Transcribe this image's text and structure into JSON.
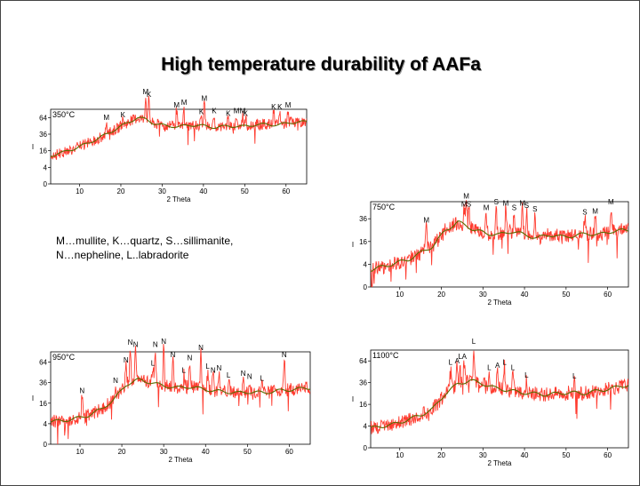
{
  "slide": {
    "title": "High temperature durability of AAFa",
    "legend_lines": [
      "M…mullite, K…quartz, S…sillimanite,",
      "N…nepheline, L..labradorite"
    ]
  },
  "colors": {
    "raw": "#ff3b2f",
    "smooth": "#5a6a00",
    "frame": "#000000"
  },
  "chart_data": [
    {
      "type": "line",
      "label": "350°C",
      "xlabel": "2 Theta",
      "ylabel": "I",
      "xlim": [
        3,
        65
      ],
      "ylim_sqrt": [
        0,
        9
      ],
      "xticks": [
        10,
        20,
        30,
        40,
        50,
        60
      ],
      "yticks": [
        0,
        4,
        16,
        36,
        64
      ],
      "y_scale": "sqrt",
      "baseline": [
        [
          3,
          3.4
        ],
        [
          6,
          3.8
        ],
        [
          9,
          4.3
        ],
        [
          12,
          4.9
        ],
        [
          15,
          5.6
        ],
        [
          18,
          6.4
        ],
        [
          21,
          7.2
        ],
        [
          24,
          8.0
        ],
        [
          26,
          7.8
        ],
        [
          28,
          7.3
        ],
        [
          31,
          7.0
        ],
        [
          34,
          6.9
        ],
        [
          37,
          7.1
        ],
        [
          40,
          7.0
        ],
        [
          43,
          6.8
        ],
        [
          46,
          7.0
        ],
        [
          49,
          6.9
        ],
        [
          52,
          7.1
        ],
        [
          55,
          7.2
        ],
        [
          58,
          7.1
        ],
        [
          61,
          7.4
        ],
        [
          65,
          7.5
        ]
      ],
      "peaks": [
        {
          "x": 16.5,
          "y": 7.5,
          "label": "M"
        },
        {
          "x": 20.5,
          "y": 7.8,
          "label": "K"
        },
        {
          "x": 26.0,
          "y": 10.6,
          "label": "M"
        },
        {
          "x": 26.8,
          "y": 10.3,
          "label": "K"
        },
        {
          "x": 33.5,
          "y": 9.0,
          "label": "M"
        },
        {
          "x": 35.3,
          "y": 9.3,
          "label": "M"
        },
        {
          "x": 40.2,
          "y": 9.8,
          "label": "M"
        },
        {
          "x": 39.5,
          "y": 8.2,
          "label": "K"
        },
        {
          "x": 42.6,
          "y": 8.3,
          "label": "K"
        },
        {
          "x": 46.0,
          "y": 8.0,
          "label": "K"
        },
        {
          "x": 48.0,
          "y": 8.3,
          "label": "M"
        },
        {
          "x": 49.5,
          "y": 8.3,
          "label": "M"
        },
        {
          "x": 50.2,
          "y": 8.0,
          "label": "K"
        },
        {
          "x": 57.0,
          "y": 8.8,
          "label": "K"
        },
        {
          "x": 58.5,
          "y": 8.8,
          "label": "K"
        },
        {
          "x": 60.5,
          "y": 9.0,
          "label": "M"
        }
      ]
    },
    {
      "type": "line",
      "label": "750°C",
      "xlabel": "2 Theta",
      "ylabel": "I",
      "xlim": [
        3,
        65
      ],
      "ylim_sqrt": [
        0,
        7.5
      ],
      "xticks": [
        10,
        20,
        30,
        40,
        50,
        60
      ],
      "yticks": [
        0,
        4,
        16,
        36
      ],
      "y_scale": "sqrt",
      "baseline": [
        [
          3,
          1.5
        ],
        [
          6,
          1.8
        ],
        [
          9,
          2.1
        ],
        [
          12,
          2.4
        ],
        [
          15,
          3.0
        ],
        [
          18,
          3.6
        ],
        [
          21,
          5.0
        ],
        [
          24,
          5.7
        ],
        [
          26,
          5.4
        ],
        [
          28,
          5.0
        ],
        [
          31,
          4.7
        ],
        [
          34,
          4.6
        ],
        [
          37,
          4.9
        ],
        [
          40,
          4.6
        ],
        [
          43,
          4.3
        ],
        [
          46,
          4.6
        ],
        [
          49,
          4.4
        ],
        [
          52,
          4.5
        ],
        [
          55,
          4.7
        ],
        [
          58,
          4.6
        ],
        [
          61,
          4.9
        ],
        [
          65,
          5.0
        ]
      ],
      "peaks": [
        {
          "x": 16.4,
          "y": 5.5,
          "label": "M"
        },
        {
          "x": 26.0,
          "y": 7.6,
          "label": "M"
        },
        {
          "x": 25.5,
          "y": 6.9,
          "label": "M"
        },
        {
          "x": 26.6,
          "y": 6.9,
          "label": "S"
        },
        {
          "x": 30.8,
          "y": 6.6,
          "label": "M"
        },
        {
          "x": 33.2,
          "y": 7.1,
          "label": "S"
        },
        {
          "x": 35.5,
          "y": 7.0,
          "label": "M"
        },
        {
          "x": 37.5,
          "y": 6.6,
          "label": "S"
        },
        {
          "x": 39.5,
          "y": 7.0,
          "label": "M"
        },
        {
          "x": 40.5,
          "y": 6.8,
          "label": "S"
        },
        {
          "x": 42.5,
          "y": 6.5,
          "label": "S"
        },
        {
          "x": 54.5,
          "y": 6.2,
          "label": "S"
        },
        {
          "x": 57.0,
          "y": 6.3,
          "label": "M"
        },
        {
          "x": 60.8,
          "y": 7.1,
          "label": "M"
        }
      ]
    },
    {
      "type": "line",
      "label": "950°C",
      "xlabel": "2 Theta",
      "ylabel": "I",
      "xlim": [
        3,
        65
      ],
      "ylim_sqrt": [
        0,
        9
      ],
      "xticks": [
        10,
        20,
        30,
        40,
        50,
        60
      ],
      "yticks": [
        0,
        4,
        16,
        36,
        64
      ],
      "y_scale": "sqrt",
      "baseline": [
        [
          3,
          2.2
        ],
        [
          6,
          2.3
        ],
        [
          9,
          2.5
        ],
        [
          12,
          2.8
        ],
        [
          15,
          3.4
        ],
        [
          18,
          4.3
        ],
        [
          21,
          5.8
        ],
        [
          24,
          6.3
        ],
        [
          27,
          6.0
        ],
        [
          30,
          5.7
        ],
        [
          33,
          5.5
        ],
        [
          36,
          5.6
        ],
        [
          39,
          5.4
        ],
        [
          42,
          5.2
        ],
        [
          45,
          5.1
        ],
        [
          48,
          5.0
        ],
        [
          51,
          5.1
        ],
        [
          54,
          5.0
        ],
        [
          57,
          5.2
        ],
        [
          60,
          5.3
        ],
        [
          65,
          5.5
        ]
      ],
      "peaks": [
        {
          "x": 10.5,
          "y": 4.8,
          "label": "N"
        },
        {
          "x": 18.5,
          "y": 5.8,
          "label": "N"
        },
        {
          "x": 21.0,
          "y": 7.8,
          "label": "N"
        },
        {
          "x": 22.0,
          "y": 9.5,
          "label": "N"
        },
        {
          "x": 23.3,
          "y": 9.3,
          "label": "N"
        },
        {
          "x": 27.4,
          "y": 7.5,
          "label": "L"
        },
        {
          "x": 28.0,
          "y": 9.3,
          "label": "N"
        },
        {
          "x": 30.0,
          "y": 9.6,
          "label": "N"
        },
        {
          "x": 32.2,
          "y": 8.3,
          "label": "N"
        },
        {
          "x": 34.8,
          "y": 6.8,
          "label": "L"
        },
        {
          "x": 36.2,
          "y": 8.0,
          "label": "N"
        },
        {
          "x": 38.9,
          "y": 9.0,
          "label": "N"
        },
        {
          "x": 40.5,
          "y": 7.2,
          "label": "L"
        },
        {
          "x": 41.8,
          "y": 6.8,
          "label": "N"
        },
        {
          "x": 43.2,
          "y": 7.0,
          "label": "N"
        },
        {
          "x": 45.5,
          "y": 6.3,
          "label": "L"
        },
        {
          "x": 49.0,
          "y": 6.5,
          "label": "N"
        },
        {
          "x": 50.5,
          "y": 6.2,
          "label": "N"
        },
        {
          "x": 53.5,
          "y": 6.0,
          "label": "L"
        },
        {
          "x": 58.8,
          "y": 8.3,
          "label": "N"
        }
      ]
    },
    {
      "type": "line",
      "label": "1100°C",
      "xlabel": "2 Theta",
      "ylabel": "I",
      "xlim": [
        3,
        65
      ],
      "ylim_sqrt": [
        0,
        9
      ],
      "xticks": [
        10,
        20,
        30,
        40,
        50,
        60
      ],
      "yticks": [
        0,
        4,
        16,
        36,
        64
      ],
      "y_scale": "sqrt",
      "baseline": [
        [
          3,
          1.8
        ],
        [
          6,
          2.0
        ],
        [
          9,
          2.2
        ],
        [
          12,
          2.6
        ],
        [
          15,
          3.0
        ],
        [
          18,
          3.6
        ],
        [
          21,
          5.0
        ],
        [
          24,
          5.9
        ],
        [
          27,
          6.2
        ],
        [
          30,
          5.9
        ],
        [
          33,
          5.5
        ],
        [
          36,
          5.3
        ],
        [
          39,
          5.1
        ],
        [
          42,
          5.0
        ],
        [
          45,
          4.9
        ],
        [
          48,
          5.0
        ],
        [
          51,
          5.1
        ],
        [
          54,
          5.0
        ],
        [
          57,
          5.2
        ],
        [
          60,
          5.4
        ],
        [
          65,
          5.8
        ]
      ],
      "peaks": [
        {
          "x": 22.2,
          "y": 7.5,
          "label": "L"
        },
        {
          "x": 23.8,
          "y": 7.6,
          "label": "A"
        },
        {
          "x": 24.5,
          "y": 8.0,
          "label": "L"
        },
        {
          "x": 25.5,
          "y": 8.0,
          "label": "A"
        },
        {
          "x": 27.8,
          "y": 9.4,
          "label": "L"
        },
        {
          "x": 31.5,
          "y": 7.0,
          "label": "L"
        },
        {
          "x": 33.5,
          "y": 7.2,
          "label": "A"
        },
        {
          "x": 35.2,
          "y": 7.5,
          "label": "L"
        },
        {
          "x": 37.2,
          "y": 7.0,
          "label": "L"
        },
        {
          "x": 40.5,
          "y": 6.3,
          "label": "L"
        },
        {
          "x": 52.0,
          "y": 6.2,
          "label": "L"
        }
      ]
    }
  ]
}
